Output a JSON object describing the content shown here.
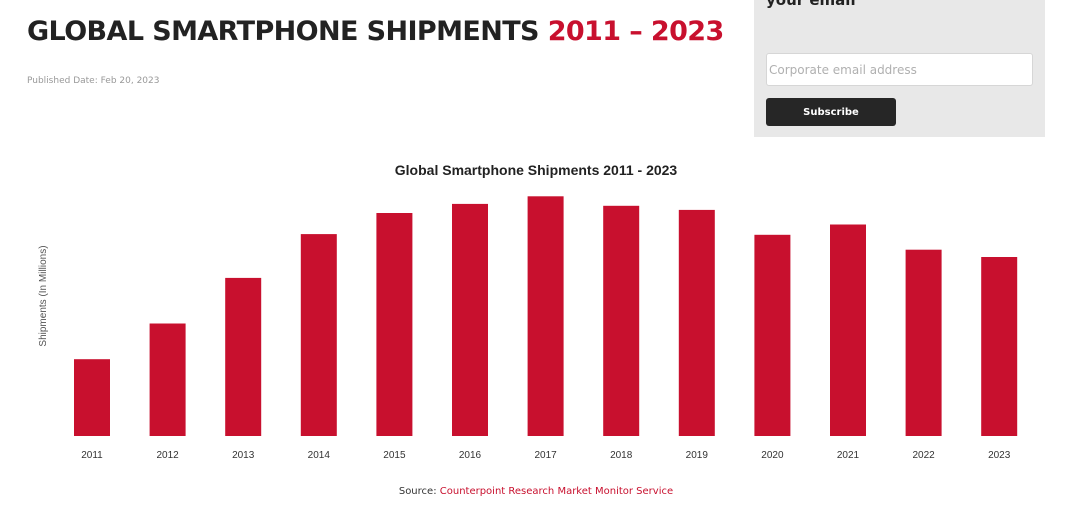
{
  "page": {
    "title_main": "GLOBAL SMARTPHONE SHIPMENTS",
    "title_years": "2011 – 2023",
    "published": "Published Date: Feb 20, 2023"
  },
  "subscribe": {
    "heading": "your email",
    "email_placeholder": "Corporate email address",
    "button_label": "Subscribe"
  },
  "chart_data": {
    "type": "bar",
    "title": "Global Smartphone Shipments 2011 - 2023",
    "xlabel": "",
    "ylabel": "Shipments (In Millions)",
    "categories": [
      "2011",
      "2012",
      "2013",
      "2014",
      "2015",
      "2016",
      "2017",
      "2018",
      "2019",
      "2020",
      "2021",
      "2022",
      "2023"
    ],
    "values": [
      495,
      725,
      1019,
      1301,
      1437,
      1496,
      1545,
      1484,
      1457,
      1297,
      1363,
      1201,
      1154
    ],
    "ylim": [
      0,
      1650
    ],
    "grid": false,
    "bar_color": "#c8102e"
  },
  "source": {
    "label": "Source:",
    "link_text": "Counterpoint Research Market Monitor Service"
  }
}
